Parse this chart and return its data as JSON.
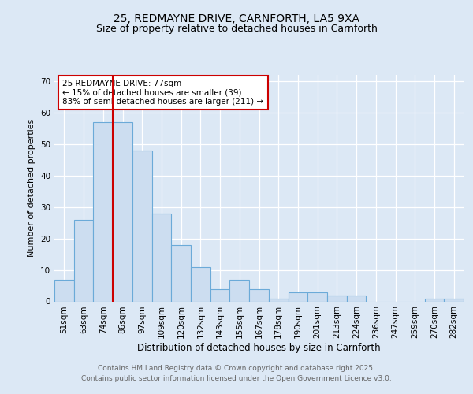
{
  "title1": "25, REDMAYNE DRIVE, CARNFORTH, LA5 9XA",
  "title2": "Size of property relative to detached houses in Carnforth",
  "xlabel": "Distribution of detached houses by size in Carnforth",
  "ylabel": "Number of detached properties",
  "categories": [
    "51sqm",
    "63sqm",
    "74sqm",
    "86sqm",
    "97sqm",
    "109sqm",
    "120sqm",
    "132sqm",
    "143sqm",
    "155sqm",
    "167sqm",
    "178sqm",
    "190sqm",
    "201sqm",
    "213sqm",
    "224sqm",
    "236sqm",
    "247sqm",
    "259sqm",
    "270sqm",
    "282sqm"
  ],
  "values": [
    7,
    26,
    57,
    57,
    48,
    28,
    18,
    11,
    4,
    7,
    4,
    1,
    3,
    3,
    2,
    2,
    0,
    0,
    0,
    1,
    1
  ],
  "bar_color": "#ccddf0",
  "bar_edge_color": "#6baad8",
  "marker_color": "#cc0000",
  "annotation_text": "25 REDMAYNE DRIVE: 77sqm\n← 15% of detached houses are smaller (39)\n83% of semi-detached houses are larger (211) →",
  "annotation_box_color": "#ffffff",
  "annotation_box_edge": "#cc0000",
  "ylim": [
    0,
    72
  ],
  "yticks": [
    0,
    10,
    20,
    30,
    40,
    50,
    60,
    70
  ],
  "footer1": "Contains HM Land Registry data © Crown copyright and database right 2025.",
  "footer2": "Contains public sector information licensed under the Open Government Licence v3.0.",
  "bg_color": "#dce8f5",
  "plot_bg_color": "#dce8f5"
}
